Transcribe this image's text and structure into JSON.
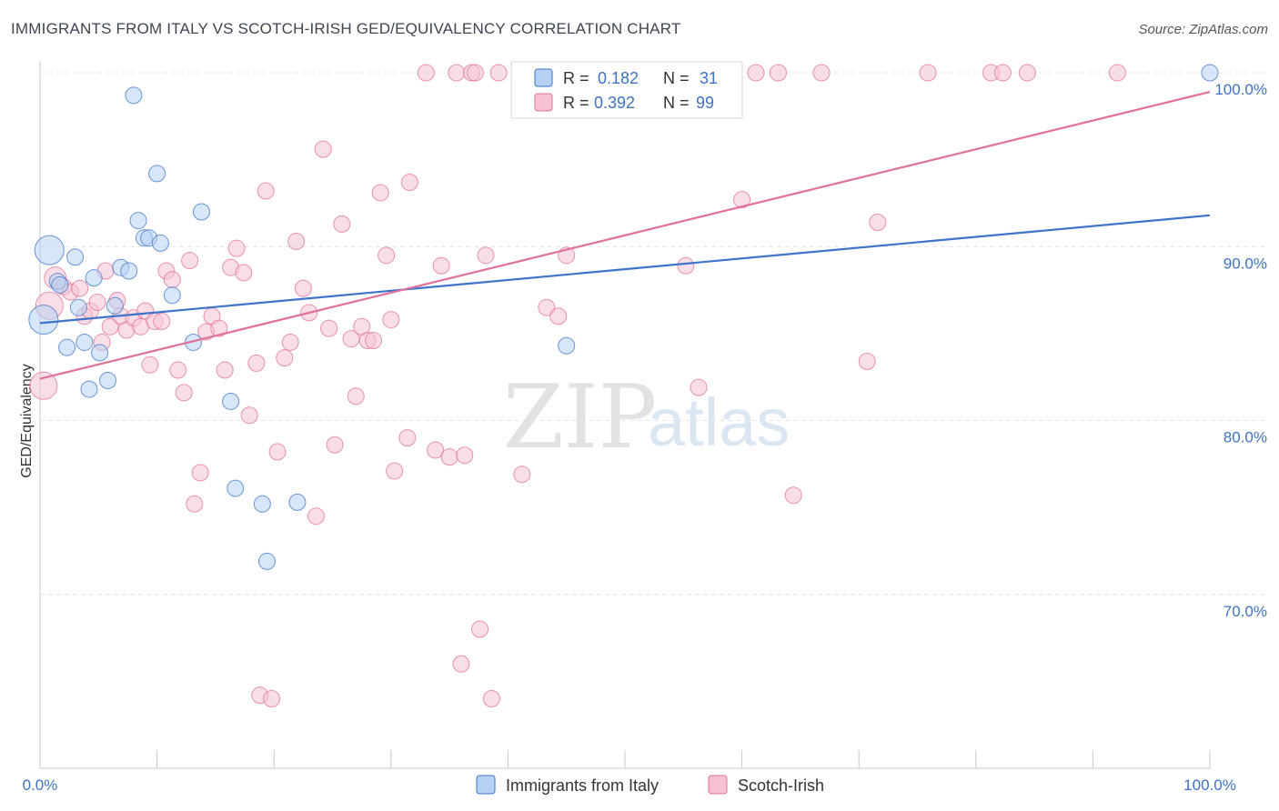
{
  "title": "IMMIGRANTS FROM ITALY VS SCOTCH-IRISH GED/EQUIVALENCY CORRELATION CHART",
  "source": "Source: ZipAtlas.com",
  "watermark": {
    "part1": "ZIP",
    "part2": "atlas"
  },
  "colors": {
    "blue": "#3d74c9",
    "blue_fill": "#b7d1f2",
    "pink": "#e0709a",
    "pink_fill": "#f6c2d3",
    "tick_text": "#3f72c0"
  },
  "legend": {
    "rows": [
      {
        "r_label": "R =",
        "r_value": "0.182",
        "n_label": "N =",
        "n_value": "31",
        "series": "blue"
      },
      {
        "r_label": "R =",
        "r_value": "0.392",
        "n_label": "N =",
        "n_value": "99",
        "series": "pink"
      }
    ]
  },
  "chart_data": {
    "type": "scatter",
    "title": "IMMIGRANTS FROM ITALY VS SCOTCH-IRISH GED/EQUIVALENCY CORRELATION CHART",
    "xlabel": "",
    "ylabel": "GED/Equivalency",
    "xlim": [
      0,
      100
    ],
    "ylim": [
      60,
      100
    ],
    "x_tick_labels": [
      "0.0%",
      "100.0%"
    ],
    "y_ticks": [
      70,
      80,
      90,
      100
    ],
    "y_tick_labels": [
      "70.0%",
      "80.0%",
      "90.0%",
      "100.0%"
    ],
    "grid": true,
    "legend_position": "top-center",
    "series": [
      {
        "name": "Immigrants from Italy",
        "color": "#3d74c9",
        "trend": [
          [
            0,
            85.6
          ],
          [
            100,
            91.8
          ]
        ],
        "points": [
          [
            0.3,
            85.8
          ],
          [
            0.8,
            89.8
          ],
          [
            1.5,
            88.0
          ],
          [
            1.7,
            87.8
          ],
          [
            2.3,
            84.2
          ],
          [
            3.0,
            89.4
          ],
          [
            3.3,
            86.5
          ],
          [
            3.8,
            84.5
          ],
          [
            4.2,
            81.8
          ],
          [
            4.6,
            88.2
          ],
          [
            5.1,
            83.9
          ],
          [
            5.8,
            82.3
          ],
          [
            6.4,
            86.6
          ],
          [
            6.9,
            88.8
          ],
          [
            7.6,
            88.6
          ],
          [
            8.0,
            98.7
          ],
          [
            8.4,
            91.5
          ],
          [
            8.9,
            90.5
          ],
          [
            9.3,
            90.5
          ],
          [
            10.0,
            94.2
          ],
          [
            10.3,
            90.2
          ],
          [
            11.3,
            87.2
          ],
          [
            13.1,
            84.5
          ],
          [
            13.8,
            92.0
          ],
          [
            16.3,
            81.1
          ],
          [
            16.7,
            76.1
          ],
          [
            19.0,
            75.2
          ],
          [
            19.4,
            71.9
          ],
          [
            22.0,
            75.3
          ],
          [
            45.0,
            84.3
          ],
          [
            100.0,
            100.0
          ]
        ]
      },
      {
        "name": "Scotch-Irish",
        "color": "#e0709a",
        "trend": [
          [
            0,
            82.4
          ],
          [
            100,
            98.9
          ]
        ],
        "points": [
          [
            0.3,
            82.0
          ],
          [
            0.8,
            86.6
          ],
          [
            1.3,
            88.2
          ],
          [
            2.0,
            87.7
          ],
          [
            2.6,
            87.4
          ],
          [
            3.4,
            87.6
          ],
          [
            3.8,
            86.0
          ],
          [
            4.3,
            86.3
          ],
          [
            4.9,
            86.8
          ],
          [
            5.3,
            84.5
          ],
          [
            5.6,
            88.6
          ],
          [
            6.0,
            85.4
          ],
          [
            6.6,
            86.9
          ],
          [
            6.9,
            86.0
          ],
          [
            7.4,
            85.2
          ],
          [
            8.0,
            85.9
          ],
          [
            8.6,
            85.4
          ],
          [
            9.0,
            86.3
          ],
          [
            9.4,
            83.2
          ],
          [
            9.8,
            85.7
          ],
          [
            10.4,
            85.7
          ],
          [
            10.8,
            88.6
          ],
          [
            11.3,
            88.1
          ],
          [
            11.8,
            82.9
          ],
          [
            12.3,
            81.6
          ],
          [
            12.8,
            89.2
          ],
          [
            13.2,
            75.2
          ],
          [
            13.7,
            77.0
          ],
          [
            14.2,
            85.1
          ],
          [
            14.7,
            86.0
          ],
          [
            15.3,
            85.3
          ],
          [
            15.8,
            82.9
          ],
          [
            16.3,
            88.8
          ],
          [
            16.8,
            89.9
          ],
          [
            17.4,
            88.5
          ],
          [
            17.9,
            80.3
          ],
          [
            18.5,
            83.3
          ],
          [
            18.8,
            64.2
          ],
          [
            19.3,
            93.2
          ],
          [
            19.8,
            64.0
          ],
          [
            20.3,
            78.2
          ],
          [
            20.9,
            83.6
          ],
          [
            21.4,
            84.5
          ],
          [
            21.9,
            90.3
          ],
          [
            22.5,
            87.6
          ],
          [
            23.0,
            86.2
          ],
          [
            23.6,
            74.5
          ],
          [
            24.2,
            95.6
          ],
          [
            24.7,
            85.3
          ],
          [
            25.2,
            78.6
          ],
          [
            25.8,
            91.3
          ],
          [
            26.6,
            84.7
          ],
          [
            27.0,
            81.4
          ],
          [
            27.5,
            85.4
          ],
          [
            28.0,
            84.6
          ],
          [
            28.5,
            84.6
          ],
          [
            29.1,
            93.1
          ],
          [
            29.6,
            89.5
          ],
          [
            30.0,
            85.8
          ],
          [
            30.3,
            77.1
          ],
          [
            31.4,
            79.0
          ],
          [
            31.6,
            93.7
          ],
          [
            33.0,
            100.0
          ],
          [
            33.8,
            78.3
          ],
          [
            34.3,
            88.9
          ],
          [
            35.0,
            77.9
          ],
          [
            35.6,
            100.0
          ],
          [
            36.0,
            66.0
          ],
          [
            36.3,
            78.0
          ],
          [
            36.9,
            100.0
          ],
          [
            37.2,
            100.0
          ],
          [
            37.6,
            68.0
          ],
          [
            38.1,
            89.5
          ],
          [
            38.6,
            64.0
          ],
          [
            39.2,
            100.0
          ],
          [
            41.2,
            76.9
          ],
          [
            42.2,
            100.0
          ],
          [
            43.3,
            86.5
          ],
          [
            44.3,
            86.0
          ],
          [
            45.0,
            89.5
          ],
          [
            46.8,
            100.0
          ],
          [
            49.0,
            100.0
          ],
          [
            50.3,
            100.0
          ],
          [
            52.1,
            100.0
          ],
          [
            55.2,
            88.9
          ],
          [
            56.3,
            81.9
          ],
          [
            57.5,
            100.0
          ],
          [
            60.0,
            92.7
          ],
          [
            61.2,
            100.0
          ],
          [
            63.1,
            100.0
          ],
          [
            64.4,
            75.7
          ],
          [
            66.8,
            100.0
          ],
          [
            70.7,
            83.4
          ],
          [
            71.6,
            91.4
          ],
          [
            75.9,
            100.0
          ],
          [
            81.3,
            100.0
          ],
          [
            82.3,
            100.0
          ],
          [
            84.4,
            100.0
          ],
          [
            92.1,
            100.0
          ]
        ]
      }
    ]
  }
}
